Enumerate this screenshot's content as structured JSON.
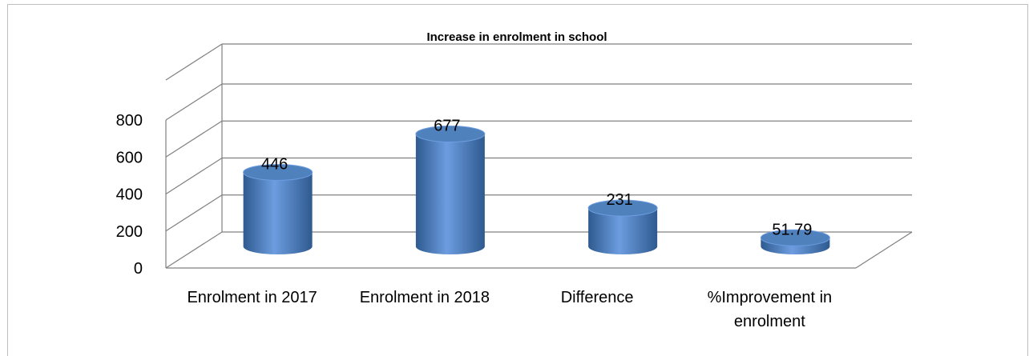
{
  "chart_data": {
    "type": "bar",
    "title": "Increase in enrolment in school",
    "categories": [
      "Enrolment in 2017",
      "Enrolment in 2018",
      "Difference",
      "%Improvement in enrolment"
    ],
    "category_lines": [
      [
        "Enrolment in 2017"
      ],
      [
        "Enrolment in 2018"
      ],
      [
        "Difference"
      ],
      [
        "%Improvement in",
        "enrolment"
      ]
    ],
    "values": [
      446,
      677,
      231,
      51.79
    ],
    "data_labels": [
      "446",
      "677",
      "231",
      "51.79"
    ],
    "ylim": [
      0,
      800
    ],
    "yticks": [
      0,
      200,
      400,
      600,
      800
    ],
    "grid": true,
    "legend": "none",
    "style": "3d-cylinder",
    "bar_color": "#4f81bd",
    "bar_color_dark": "#2e5a8f",
    "bar_color_light": "#6d9de0",
    "grid_color": "#808080"
  }
}
